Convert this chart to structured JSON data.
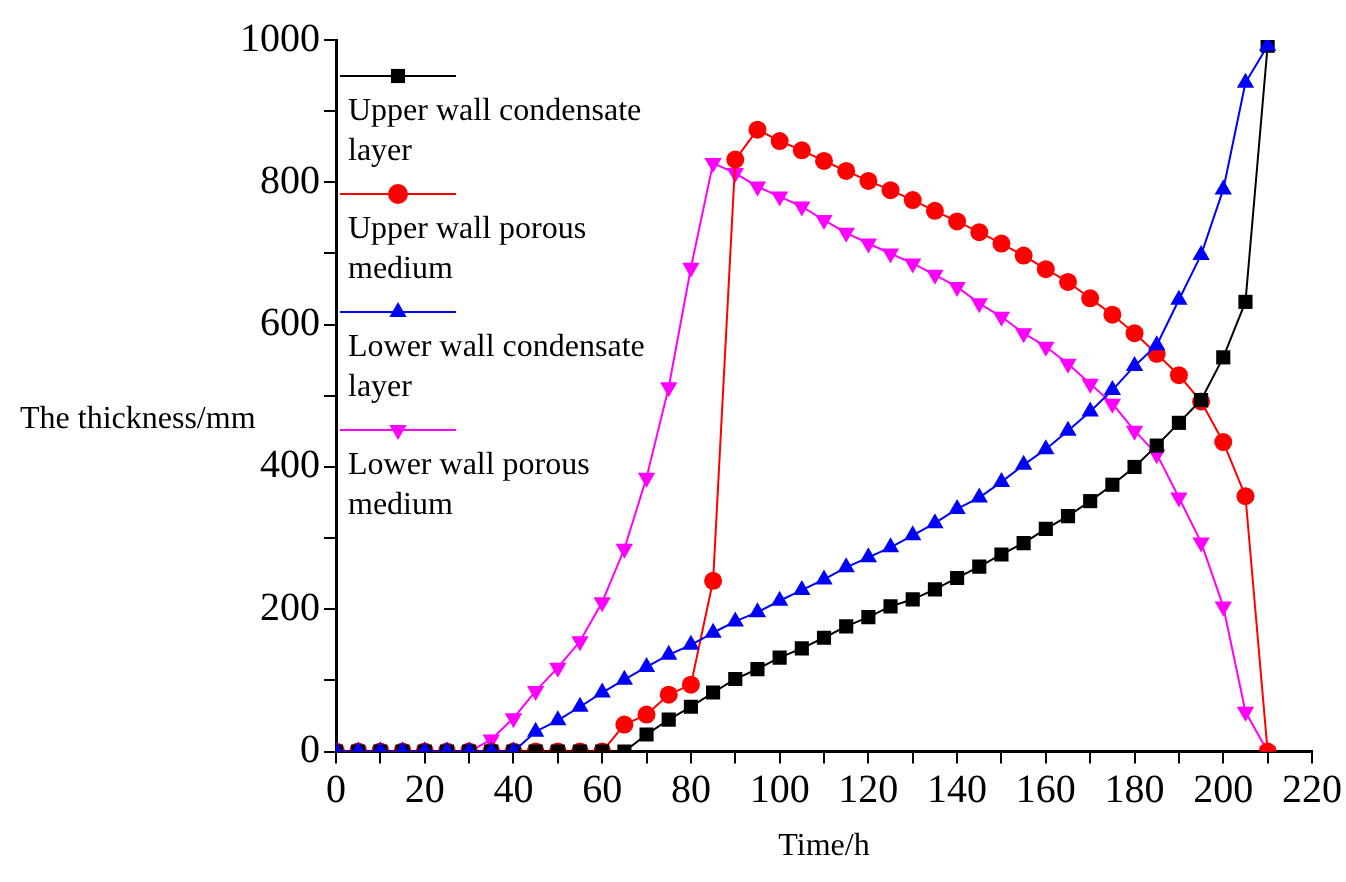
{
  "chart_data": {
    "type": "line",
    "xlabel": "Time/h",
    "ylabel": "The thickness/mm",
    "legend": "top left",
    "line_style": "solid",
    "x": [
      0,
      5,
      10,
      15,
      20,
      25,
      30,
      35,
      40,
      45,
      50,
      55,
      60,
      65,
      70,
      75,
      80,
      85,
      90,
      95,
      100,
      105,
      110,
      115,
      120,
      125,
      130,
      135,
      140,
      145,
      150,
      155,
      160,
      165,
      170,
      175,
      180,
      185,
      190,
      195,
      200,
      205,
      210
    ],
    "xlim": [
      0,
      220
    ],
    "xticks": [
      0,
      {
        "value": 10,
        "label": null
      },
      20,
      {
        "value": 30,
        "label": null
      },
      40,
      {
        "value": 50,
        "label": null
      },
      60,
      {
        "value": 70,
        "label": null
      },
      80,
      {
        "value": 90,
        "label": null
      },
      100,
      {
        "value": 110,
        "label": null
      },
      120,
      {
        "value": 130,
        "label": null
      },
      140,
      {
        "value": 150,
        "label": null
      },
      160,
      {
        "value": 170,
        "label": null
      },
      180,
      {
        "value": 190,
        "label": null
      },
      200,
      {
        "value": 210,
        "label": null
      },
      220
    ],
    "ylim": [
      0,
      1000
    ],
    "yticks": [
      0,
      {
        "value": 100,
        "label": null
      },
      200,
      {
        "value": 300,
        "label": null
      },
      400,
      {
        "value": 500,
        "label": null
      },
      600,
      {
        "value": 700,
        "label": null
      },
      800,
      {
        "value": 900,
        "label": null
      },
      1000
    ],
    "series": [
      {
        "name": "Upper wall condensate layer",
        "color": "#000000",
        "marker": "square",
        "values": [
          0,
          0,
          0,
          0,
          0,
          0,
          0,
          0,
          0,
          0,
          0,
          0,
          0,
          0,
          24,
          45,
          63,
          83,
          102,
          116,
          132,
          145,
          160,
          176,
          189,
          204,
          214,
          228,
          244,
          260,
          277,
          293,
          313,
          331,
          352,
          375,
          400,
          430,
          462,
          494,
          554,
          632,
          992
        ]
      },
      {
        "name": "Upper wall porous medium",
        "color": "#ff0000",
        "marker": "circle",
        "values": [
          0,
          0,
          0,
          0,
          0,
          0,
          0,
          0,
          0,
          0,
          0,
          0,
          0,
          38,
          52,
          80,
          94,
          240,
          832,
          874,
          858,
          845,
          830,
          816,
          802,
          789,
          775,
          760,
          745,
          730,
          714,
          697,
          678,
          660,
          637,
          614,
          588,
          559,
          529,
          492,
          435,
          359,
          0
        ]
      },
      {
        "name": "Lower wall condensate layer",
        "color": "#0000ff",
        "marker": "triangle",
        "values": [
          0,
          0,
          0,
          0,
          0,
          0,
          0,
          0,
          0,
          28,
          44,
          63,
          83,
          101,
          119,
          136,
          150,
          167,
          183,
          196,
          212,
          227,
          242,
          259,
          273,
          287,
          304,
          321,
          341,
          357,
          379,
          403,
          425,
          451,
          478,
          508,
          542,
          571,
          635,
          698,
          790,
          940,
          992
        ]
      },
      {
        "name": "Lower wall porous medium",
        "color": "#ff00ff",
        "marker": "triangle-down",
        "values": [
          0,
          0,
          0,
          0,
          0,
          0,
          0,
          17,
          47,
          85,
          118,
          155,
          210,
          285,
          385,
          512,
          680,
          827,
          813,
          794,
          780,
          766,
          747,
          729,
          714,
          700,
          686,
          670,
          653,
          630,
          611,
          588,
          569,
          545,
          517,
          489,
          451,
          418,
          357,
          294,
          204,
          56,
          0
        ]
      }
    ]
  }
}
